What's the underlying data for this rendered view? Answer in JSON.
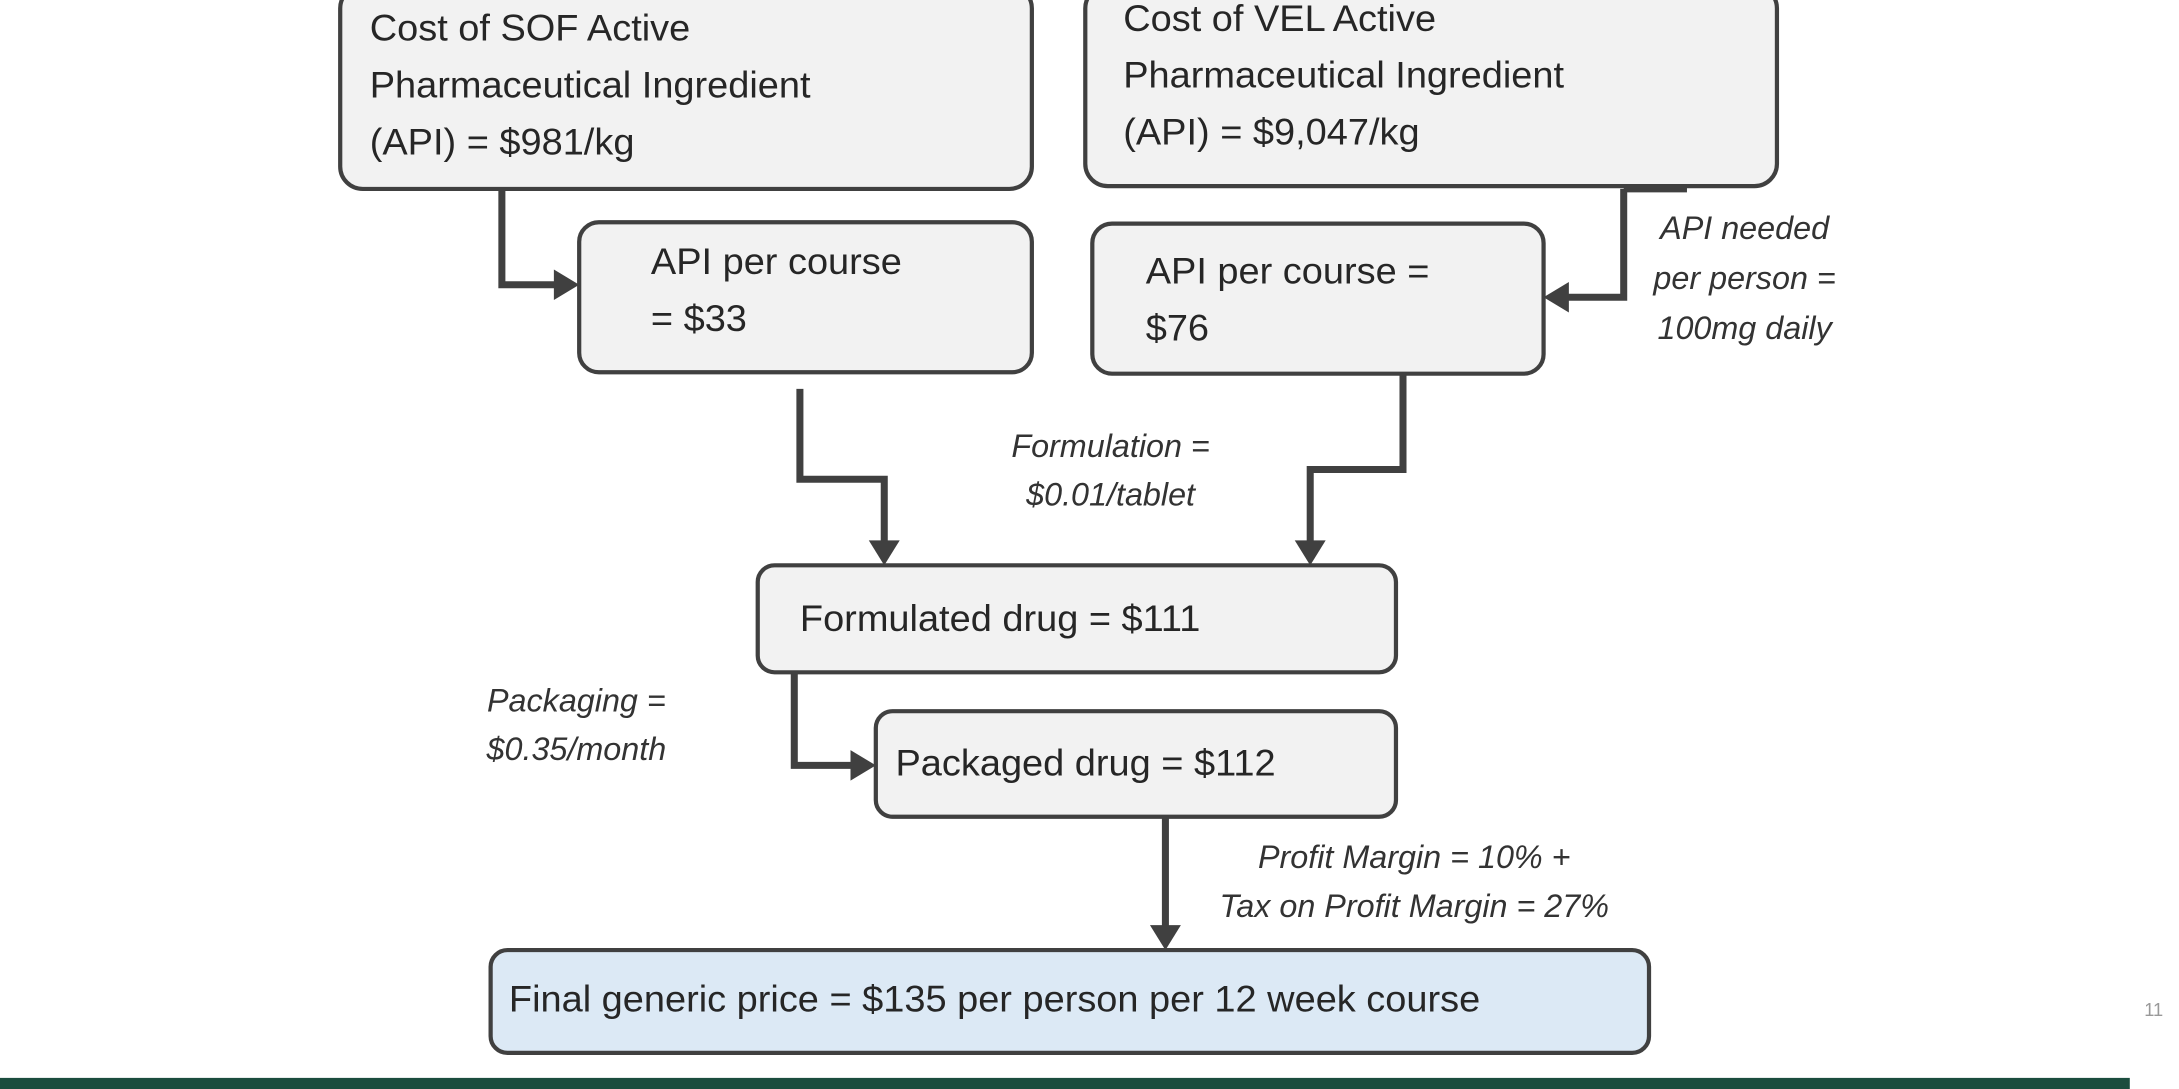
{
  "nodes": [
    {
      "lines": [
        "Cost of SOF Active",
        "Pharmaceutical Ingredient",
        "(API) = $981/kg"
      ]
    },
    {
      "lines": [
        "Cost of VEL Active",
        "Pharmaceutical Ingredient",
        "(API) = $9,047/kg"
      ]
    },
    {
      "lines": [
        "API per course",
        "= $33"
      ]
    },
    {
      "lines": [
        "API per course =",
        "$76"
      ]
    },
    {
      "lines": [
        "Formulated drug = $111"
      ]
    },
    {
      "lines": [
        "Packaged drug = $112"
      ]
    },
    {
      "lines": [
        "Final generic price = $135 per person per 12 week course"
      ]
    }
  ],
  "annotations": [
    {
      "lines": [
        "API needed",
        "per person =",
        "100mg daily"
      ]
    },
    {
      "lines": [
        "Formulation =",
        "$0.01/tablet"
      ]
    },
    {
      "lines": [
        "Packaging =",
        "$0.35/month"
      ]
    },
    {
      "lines": [
        "Profit Margin = 10% +",
        "Tax on Profit Margin = 27%"
      ]
    }
  ],
  "page_number": "11"
}
